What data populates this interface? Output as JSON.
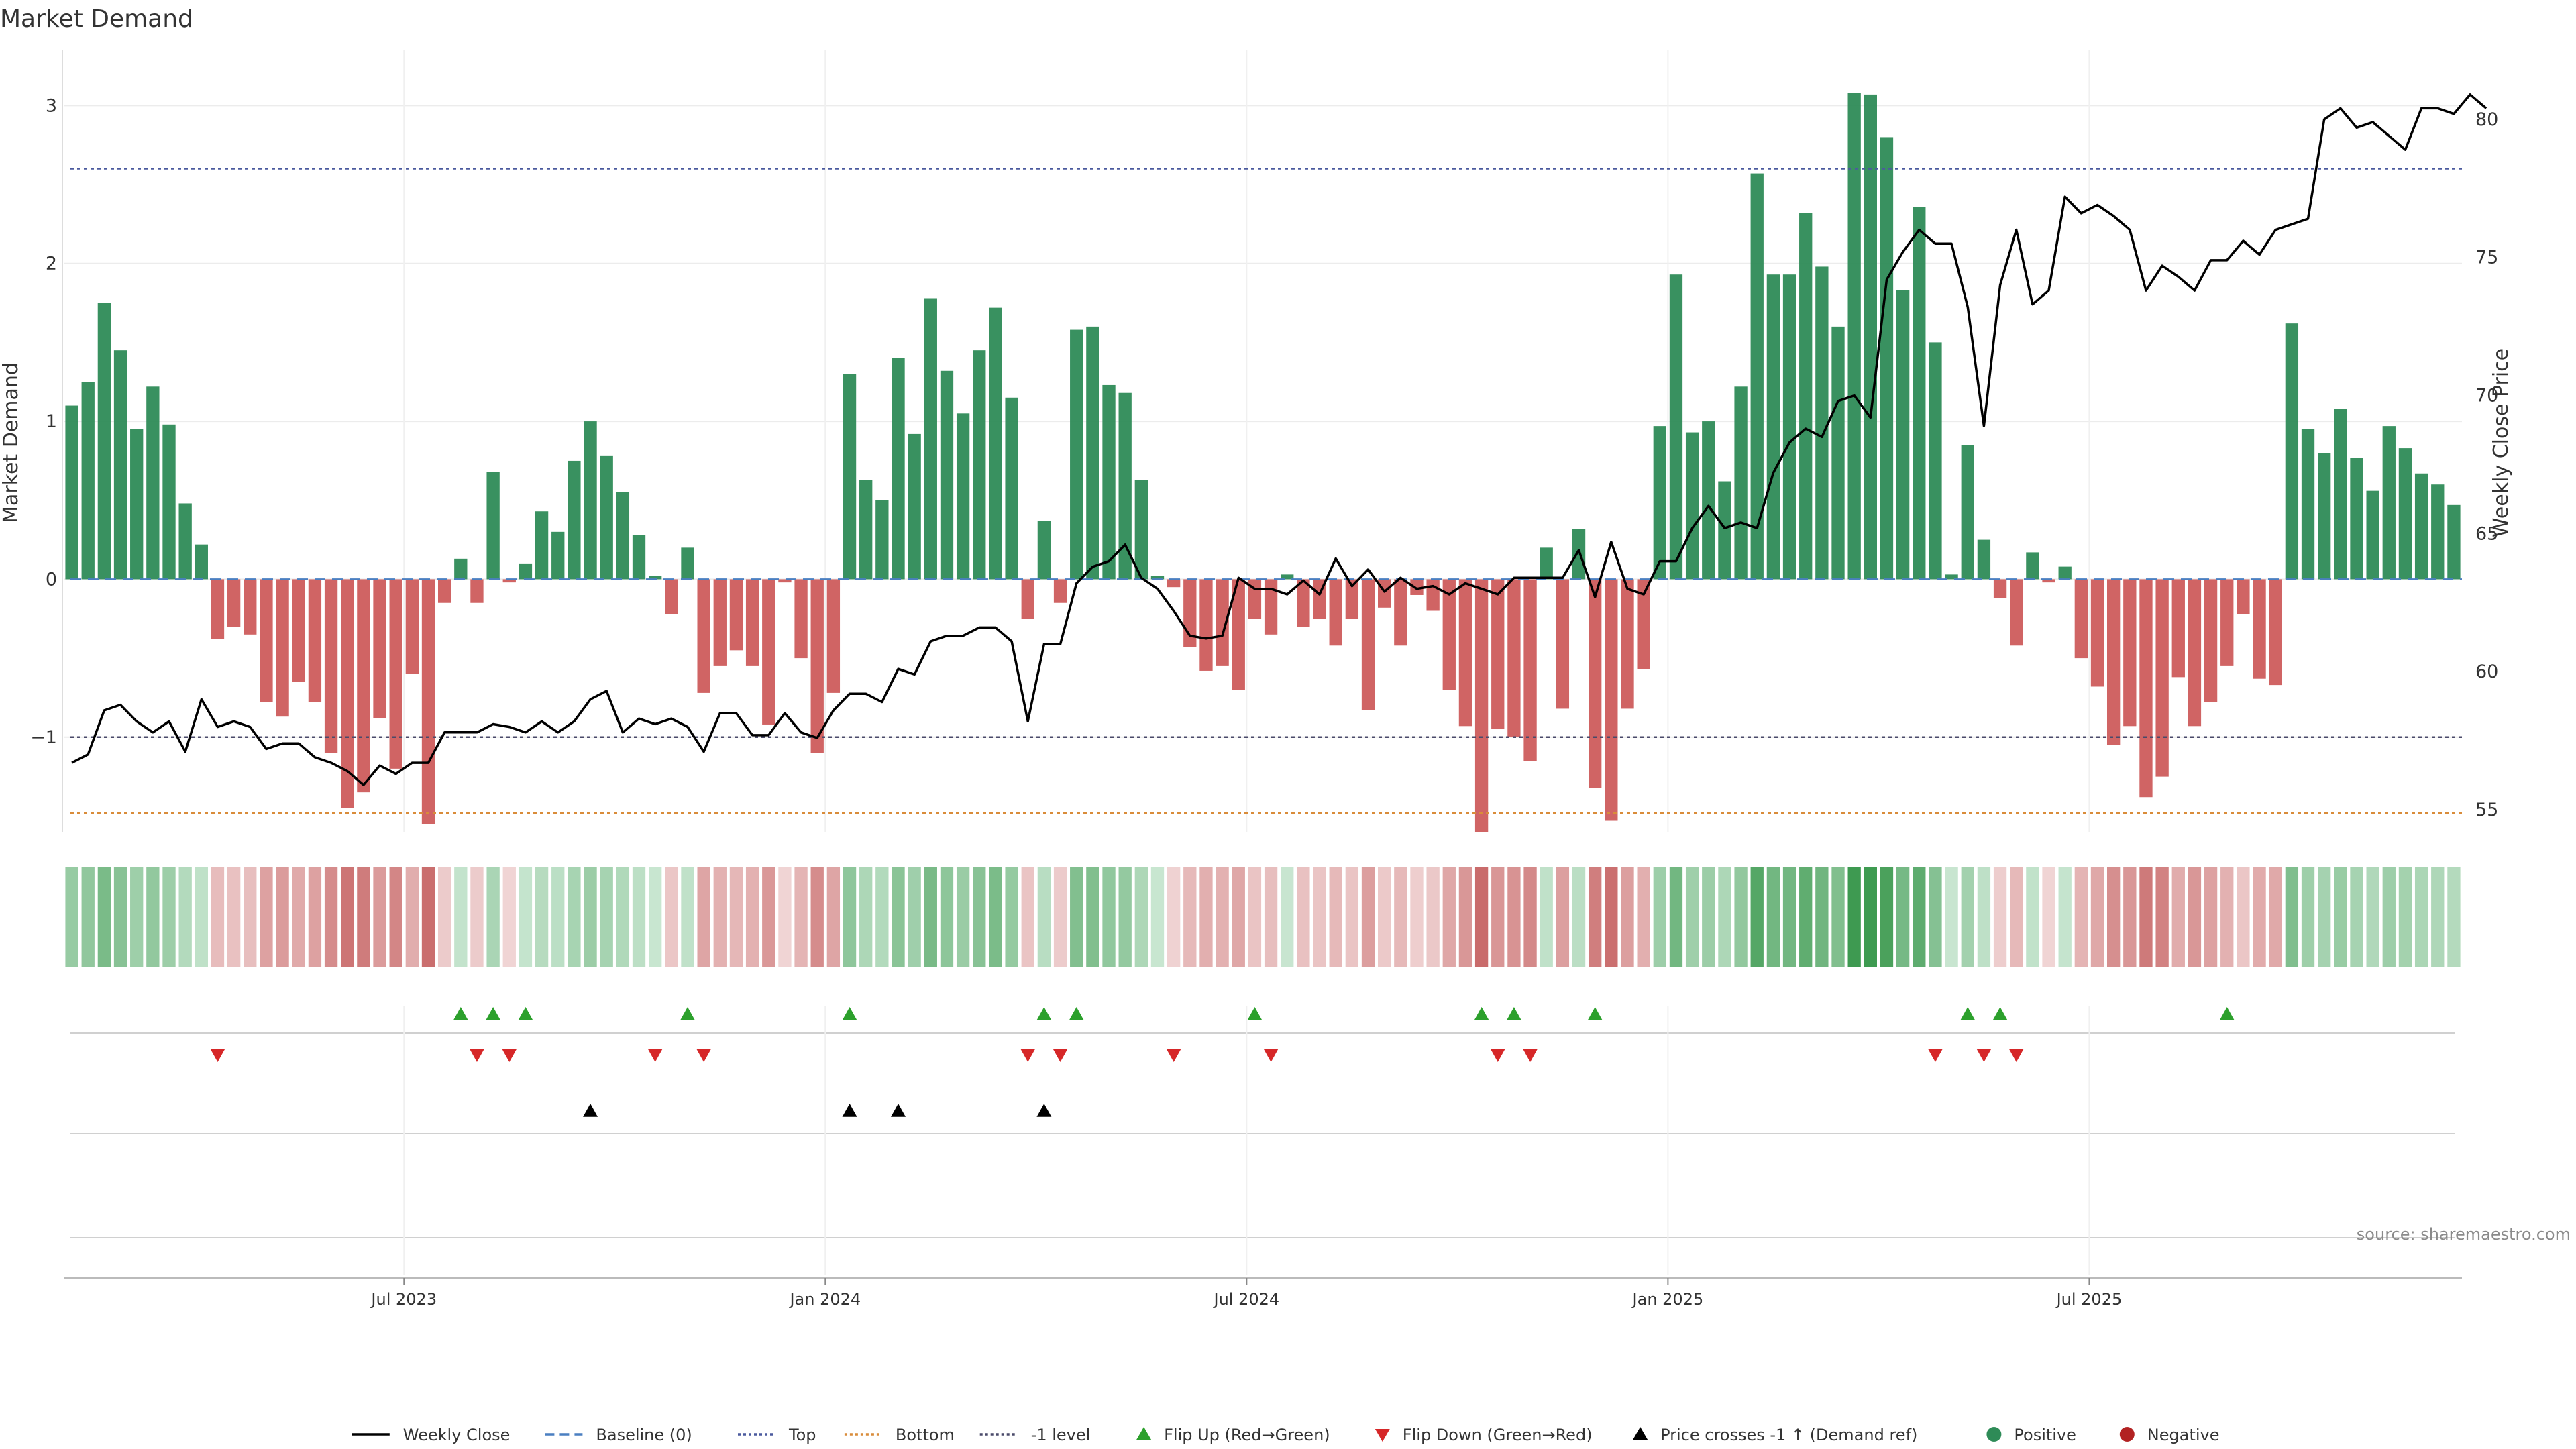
{
  "chart_data": {
    "type": "bar",
    "title": "Market Demand",
    "ylabel_left": "Market Demand",
    "ylabel_right": "Weekly Close Price",
    "ylim_left": [
      -1.6,
      3.35
    ],
    "ylim_right": [
      54.2,
      82.5
    ],
    "yticks_left": [
      -1,
      0,
      1,
      2,
      3
    ],
    "yticks_right": [
      55,
      60,
      65,
      70,
      75,
      80
    ],
    "reference_lines": {
      "top": 2.6,
      "bottom": -1.48,
      "minus_one": -1,
      "baseline": 0
    },
    "x_tick_labels": [
      {
        "label": "Jul 2023",
        "index": 21
      },
      {
        "label": "Jan 2024",
        "index": 47
      },
      {
        "label": "Jul 2024",
        "index": 73
      },
      {
        "label": "Jan 2025",
        "index": 99
      },
      {
        "label": "Jul 2025",
        "index": 125
      }
    ],
    "demand": [
      1.1,
      1.25,
      1.75,
      1.45,
      0.95,
      1.22,
      0.98,
      0.48,
      0.22,
      -0.38,
      -0.3,
      -0.35,
      -0.78,
      -0.87,
      -0.65,
      -0.78,
      -1.1,
      -1.45,
      -1.35,
      -0.88,
      -1.2,
      -0.6,
      -1.55,
      -0.15,
      0.13,
      -0.15,
      0.68,
      -0.02,
      0.1,
      0.43,
      0.3,
      0.75,
      1.0,
      0.78,
      0.55,
      0.28,
      0.02,
      -0.22,
      0.2,
      -0.72,
      -0.55,
      -0.45,
      -0.55,
      -0.92,
      -0.02,
      -0.5,
      -1.1,
      -0.72,
      1.3,
      0.63,
      0.5,
      1.4,
      0.92,
      1.78,
      1.32,
      1.05,
      1.45,
      1.72,
      1.15,
      -0.25,
      0.37,
      -0.15,
      1.58,
      1.6,
      1.23,
      1.18,
      0.63,
      0.02,
      -0.05,
      -0.43,
      -0.58,
      -0.55,
      -0.7,
      -0.25,
      -0.35,
      0.03,
      -0.3,
      -0.25,
      -0.42,
      -0.25,
      -0.83,
      -0.18,
      -0.42,
      -0.1,
      -0.2,
      -0.7,
      -0.93,
      -1.6,
      -0.95,
      -1.0,
      -1.15,
      0.2,
      -0.82,
      0.32,
      -1.32,
      -1.53,
      -0.82,
      -0.57,
      0.97,
      1.93,
      0.93,
      1.0,
      0.62,
      1.22,
      2.57,
      1.93,
      1.93,
      2.32,
      1.98,
      1.6,
      3.08,
      3.07,
      2.8,
      1.83,
      2.36,
      1.5,
      0.03,
      0.85,
      0.25,
      -0.12,
      -0.42,
      0.17,
      -0.02,
      0.08,
      -0.5,
      -0.68,
      -1.05,
      -0.93,
      -1.38,
      -1.25,
      -0.62,
      -0.93,
      -0.78,
      -0.55,
      -0.22,
      -0.63,
      -0.67,
      1.62,
      0.95,
      0.8,
      1.08,
      0.77,
      0.56,
      0.97,
      0.83,
      0.67,
      0.6,
      0.47
    ],
    "weekly_close": [
      56.7,
      57.0,
      58.6,
      58.8,
      58.2,
      57.8,
      58.2,
      57.1,
      59.0,
      58.0,
      58.2,
      58.0,
      57.2,
      57.4,
      57.4,
      56.9,
      56.7,
      56.4,
      55.9,
      56.6,
      56.3,
      56.7,
      56.7,
      57.8,
      57.8,
      57.8,
      58.1,
      58.0,
      57.8,
      58.2,
      57.8,
      58.2,
      59.0,
      59.3,
      57.8,
      58.3,
      58.1,
      58.3,
      58.0,
      57.1,
      58.5,
      58.5,
      57.7,
      57.7,
      58.5,
      57.8,
      57.6,
      58.6,
      59.2,
      59.2,
      58.9,
      60.1,
      59.9,
      61.1,
      61.3,
      61.3,
      61.6,
      61.6,
      61.1,
      58.2,
      61.0,
      61.0,
      63.2,
      63.8,
      64.0,
      64.6,
      63.4,
      63.0,
      62.2,
      61.3,
      61.2,
      61.3,
      63.4,
      63.0,
      63.0,
      62.8,
      63.3,
      62.8,
      64.1,
      63.1,
      63.7,
      62.9,
      63.4,
      63.0,
      63.1,
      62.8,
      63.2,
      63.0,
      62.8,
      63.4,
      63.4,
      63.4,
      63.4,
      64.4,
      62.7,
      64.7,
      63.0,
      62.8,
      64.0,
      64.0,
      65.2,
      66.0,
      65.2,
      65.4,
      65.2,
      67.2,
      68.3,
      68.8,
      68.5,
      69.8,
      70.0,
      69.2,
      74.2,
      75.2,
      76.0,
      75.5,
      75.5,
      73.2,
      68.9,
      74.0,
      76.0,
      73.3,
      73.8,
      77.2,
      76.6,
      76.9,
      76.5,
      76.0,
      73.8,
      74.7,
      74.3,
      73.8,
      74.9,
      74.9,
      75.6,
      75.1,
      76.0,
      76.2,
      76.4,
      80.0,
      80.4,
      79.7,
      79.9,
      79.4,
      78.9,
      80.4,
      80.4,
      80.2,
      80.9,
      80.4
    ],
    "band_colors": {
      "positive_strong": "#3d9a50",
      "positive_weak": "#c9e6d1",
      "negative_strong": "#c96b6b",
      "negative_weak": "#f0d5d5"
    },
    "flip_up_indices": [
      24,
      26,
      28,
      38,
      48,
      60,
      62,
      73,
      87,
      89,
      94,
      117,
      119,
      133
    ],
    "flip_down_indices": [
      9,
      25,
      27,
      36,
      39,
      59,
      61,
      68,
      74,
      88,
      90,
      115,
      118,
      120
    ],
    "price_cross_indices": [
      32,
      48,
      51,
      60
    ],
    "colors": {
      "positive": "#2e8b57",
      "negative": "#cd5c5c",
      "price_line": "#000000",
      "top_line": "#4b5a9e",
      "bottom_line": "#d98c3a",
      "minus_one_line": "#4a4a6a",
      "baseline": "#4a7fc1",
      "flip_up": "#2ca02c",
      "flip_down": "#d62728",
      "cross": "#000000"
    },
    "legend": [
      {
        "label": "Weekly Close",
        "kind": "line",
        "color": "#000000",
        "dash": ""
      },
      {
        "label": "Baseline (0)",
        "kind": "line",
        "color": "#4a7fc1",
        "dash": "14,8"
      },
      {
        "label": "Top",
        "kind": "line",
        "color": "#4b5a9e",
        "dash": "4,4"
      },
      {
        "label": "Bottom",
        "kind": "line",
        "color": "#d98c3a",
        "dash": "4,4"
      },
      {
        "label": "-1 level",
        "kind": "line",
        "color": "#4a4a6a",
        "dash": "4,4"
      },
      {
        "label": "Flip Up (Red→Green)",
        "kind": "tri-up",
        "color": "#2ca02c"
      },
      {
        "label": "Flip Down (Green→Red)",
        "kind": "tri-down",
        "color": "#d62728"
      },
      {
        "label": "Price crosses -1 ↑ (Demand ref)",
        "kind": "tri-up",
        "color": "#000000"
      },
      {
        "label": "Positive",
        "kind": "dot",
        "color": "#2e8b57"
      },
      {
        "label": "Negative",
        "kind": "dot",
        "color": "#b22222"
      }
    ],
    "source": "source: sharemaestro.com"
  }
}
